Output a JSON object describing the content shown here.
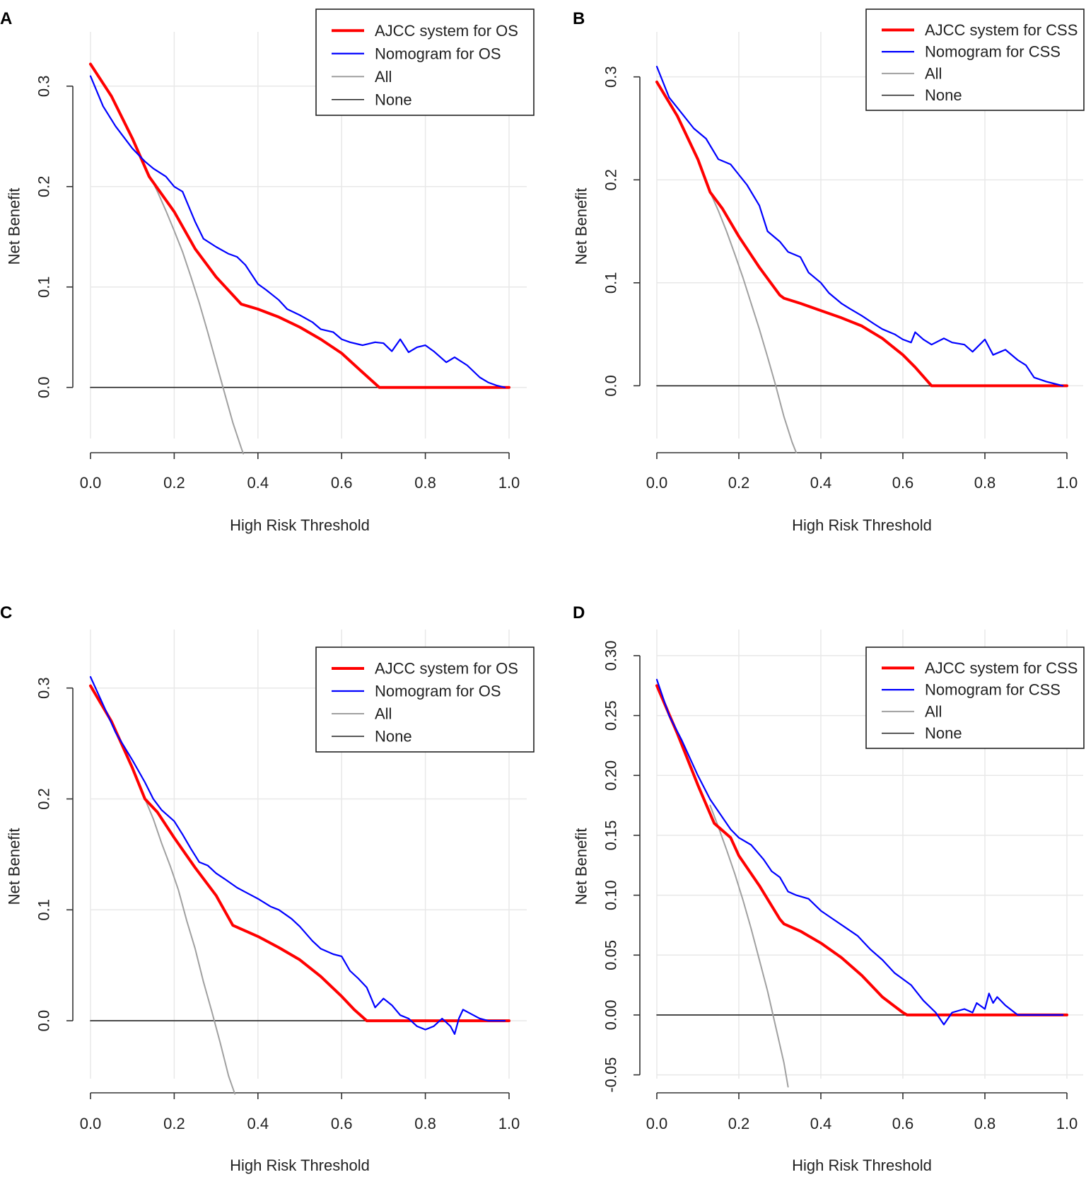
{
  "colors": {
    "ajcc": "#ff0000",
    "nomogram": "#0000ff",
    "all": "#a0a0a0",
    "none": "#222222",
    "grid": "#e8e8e8"
  },
  "chart_data": [
    {
      "panel": "A",
      "type": "line",
      "xlabel": "High Risk Threshold",
      "ylabel": "Net Benefit",
      "xlim": [
        0,
        1
      ],
      "ylim": [
        -0.065,
        0.34
      ],
      "xticks": [
        "0.0",
        "0.2",
        "0.4",
        "0.6",
        "0.8",
        "1.0"
      ],
      "yticks": [
        "0.0",
        "0.1",
        "0.2",
        "0.3"
      ],
      "ytick_values": [
        0,
        0.1,
        0.2,
        0.3
      ],
      "legend": [
        "AJCC system for OS",
        "Nomogram for OS",
        "All",
        "None"
      ],
      "series": [
        {
          "name": "AJCC system for OS",
          "x": [
            0,
            0.05,
            0.1,
            0.14,
            0.2,
            0.25,
            0.3,
            0.36,
            0.4,
            0.45,
            0.5,
            0.55,
            0.6,
            0.65,
            0.69,
            0.8,
            0.9,
            1.0
          ],
          "y": [
            0.322,
            0.29,
            0.248,
            0.21,
            0.175,
            0.138,
            0.11,
            0.083,
            0.078,
            0.07,
            0.06,
            0.048,
            0.034,
            0.015,
            0,
            0,
            0,
            0
          ]
        },
        {
          "name": "Nomogram for OS",
          "x": [
            0,
            0.03,
            0.06,
            0.1,
            0.13,
            0.15,
            0.18,
            0.2,
            0.22,
            0.25,
            0.27,
            0.3,
            0.33,
            0.35,
            0.37,
            0.4,
            0.42,
            0.45,
            0.47,
            0.5,
            0.53,
            0.55,
            0.58,
            0.6,
            0.62,
            0.65,
            0.68,
            0.7,
            0.72,
            0.74,
            0.76,
            0.78,
            0.8,
            0.82,
            0.85,
            0.87,
            0.9,
            0.93,
            0.95,
            0.97,
            0.99
          ],
          "y": [
            0.31,
            0.28,
            0.26,
            0.238,
            0.225,
            0.218,
            0.21,
            0.2,
            0.195,
            0.165,
            0.148,
            0.14,
            0.133,
            0.13,
            0.122,
            0.103,
            0.097,
            0.087,
            0.078,
            0.072,
            0.065,
            0.058,
            0.055,
            0.048,
            0.045,
            0.042,
            0.045,
            0.044,
            0.036,
            0.048,
            0.035,
            0.04,
            0.042,
            0.036,
            0.025,
            0.03,
            0.022,
            0.01,
            0.005,
            0.002,
            0
          ]
        },
        {
          "name": "All",
          "x": [
            0.14,
            0.16,
            0.18,
            0.2,
            0.22,
            0.24,
            0.26,
            0.28,
            0.3,
            0.32,
            0.34,
            0.36,
            0.365
          ],
          "y": [
            0.212,
            0.195,
            0.176,
            0.156,
            0.135,
            0.11,
            0.084,
            0.055,
            0.025,
            -0.005,
            -0.035,
            -0.06,
            -0.066
          ]
        },
        {
          "name": "None",
          "x": [
            0,
            1
          ],
          "y": [
            0,
            0
          ]
        }
      ]
    },
    {
      "panel": "B",
      "type": "line",
      "xlabel": "High Risk Threshold",
      "ylabel": "Net Benefit",
      "xlim": [
        0,
        1
      ],
      "ylim": [
        -0.065,
        0.33
      ],
      "xticks": [
        "0.0",
        "0.2",
        "0.4",
        "0.6",
        "0.8",
        "1.0"
      ],
      "yticks": [
        "0.0",
        "0.1",
        "0.2",
        "0.3"
      ],
      "ytick_values": [
        0,
        0.1,
        0.2,
        0.3
      ],
      "legend": [
        "AJCC system for CSS",
        "Nomogram for CSS",
        "All",
        "None"
      ],
      "series": [
        {
          "name": "AJCC system for CSS",
          "x": [
            0,
            0.05,
            0.1,
            0.13,
            0.16,
            0.2,
            0.25,
            0.3,
            0.31,
            0.35,
            0.4,
            0.45,
            0.5,
            0.55,
            0.6,
            0.63,
            0.67,
            0.8,
            0.9,
            1.0
          ],
          "y": [
            0.295,
            0.262,
            0.22,
            0.188,
            0.172,
            0.145,
            0.115,
            0.088,
            0.085,
            0.08,
            0.073,
            0.066,
            0.058,
            0.046,
            0.03,
            0.018,
            0,
            0,
            0,
            0
          ]
        },
        {
          "name": "Nomogram for CSS",
          "x": [
            0,
            0.03,
            0.06,
            0.09,
            0.12,
            0.15,
            0.18,
            0.2,
            0.22,
            0.25,
            0.27,
            0.3,
            0.32,
            0.35,
            0.37,
            0.4,
            0.42,
            0.45,
            0.47,
            0.5,
            0.53,
            0.55,
            0.58,
            0.6,
            0.62,
            0.63,
            0.65,
            0.67,
            0.7,
            0.72,
            0.75,
            0.77,
            0.8,
            0.82,
            0.85,
            0.88,
            0.9,
            0.92,
            0.95,
            0.97,
            0.99
          ],
          "y": [
            0.31,
            0.28,
            0.265,
            0.25,
            0.24,
            0.22,
            0.215,
            0.205,
            0.195,
            0.175,
            0.15,
            0.14,
            0.13,
            0.125,
            0.11,
            0.1,
            0.09,
            0.08,
            0.075,
            0.068,
            0.06,
            0.055,
            0.05,
            0.045,
            0.042,
            0.052,
            0.045,
            0.04,
            0.046,
            0.042,
            0.04,
            0.033,
            0.045,
            0.03,
            0.035,
            0.025,
            0.02,
            0.008,
            0.004,
            0.002,
            0
          ]
        },
        {
          "name": "All",
          "x": [
            0.13,
            0.15,
            0.17,
            0.19,
            0.21,
            0.23,
            0.25,
            0.27,
            0.29,
            0.31,
            0.33,
            0.34
          ],
          "y": [
            0.188,
            0.17,
            0.15,
            0.128,
            0.105,
            0.08,
            0.055,
            0.028,
            0,
            -0.03,
            -0.055,
            -0.065
          ]
        },
        {
          "name": "None",
          "x": [
            0,
            1
          ],
          "y": [
            0,
            0
          ]
        }
      ]
    },
    {
      "panel": "C",
      "type": "line",
      "xlabel": "High Risk Threshold",
      "ylabel": "Net Benefit",
      "xlim": [
        0,
        1
      ],
      "ylim": [
        -0.065,
        0.34
      ],
      "xticks": [
        "0.0",
        "0.2",
        "0.4",
        "0.6",
        "0.8",
        "1.0"
      ],
      "yticks": [
        "0.0",
        "0.1",
        "0.2",
        "0.3"
      ],
      "ytick_values": [
        0,
        0.1,
        0.2,
        0.3
      ],
      "legend": [
        "AJCC system for OS",
        "Nomogram for OS",
        "All",
        "None"
      ],
      "series": [
        {
          "name": "AJCC system for OS",
          "x": [
            0,
            0.05,
            0.1,
            0.13,
            0.16,
            0.2,
            0.25,
            0.3,
            0.34,
            0.4,
            0.45,
            0.5,
            0.55,
            0.6,
            0.63,
            0.66,
            0.8,
            0.9,
            1.0
          ],
          "y": [
            0.302,
            0.27,
            0.228,
            0.2,
            0.188,
            0.165,
            0.138,
            0.113,
            0.086,
            0.076,
            0.066,
            0.055,
            0.04,
            0.022,
            0.01,
            0,
            0,
            0,
            0
          ]
        },
        {
          "name": "Nomogram for OS",
          "x": [
            0,
            0.03,
            0.06,
            0.1,
            0.13,
            0.15,
            0.17,
            0.2,
            0.22,
            0.24,
            0.26,
            0.28,
            0.3,
            0.32,
            0.35,
            0.37,
            0.4,
            0.43,
            0.45,
            0.48,
            0.5,
            0.53,
            0.55,
            0.58,
            0.6,
            0.62,
            0.64,
            0.66,
            0.68,
            0.7,
            0.72,
            0.74,
            0.76,
            0.78,
            0.8,
            0.82,
            0.84,
            0.86,
            0.87,
            0.88,
            0.89,
            0.91,
            0.93,
            0.95,
            0.99
          ],
          "y": [
            0.31,
            0.285,
            0.26,
            0.235,
            0.215,
            0.2,
            0.19,
            0.18,
            0.168,
            0.155,
            0.143,
            0.14,
            0.133,
            0.128,
            0.12,
            0.116,
            0.11,
            0.103,
            0.1,
            0.092,
            0.085,
            0.072,
            0.065,
            0.06,
            0.058,
            0.045,
            0.038,
            0.03,
            0.012,
            0.02,
            0.014,
            0.005,
            0.002,
            -0.005,
            -0.008,
            -0.005,
            0.002,
            -0.005,
            -0.012,
            0.002,
            0.01,
            0.006,
            0.002,
            0,
            0
          ]
        },
        {
          "name": "All",
          "x": [
            0.13,
            0.15,
            0.17,
            0.19,
            0.21,
            0.23,
            0.25,
            0.27,
            0.29,
            0.31,
            0.33,
            0.345
          ],
          "y": [
            0.2,
            0.182,
            0.16,
            0.14,
            0.118,
            0.09,
            0.065,
            0.035,
            0.008,
            -0.02,
            -0.05,
            -0.066
          ]
        },
        {
          "name": "None",
          "x": [
            0,
            1
          ],
          "y": [
            0,
            0
          ]
        }
      ]
    },
    {
      "panel": "D",
      "type": "line",
      "xlabel": "High Risk Threshold",
      "ylabel": "Net Benefit",
      "xlim": [
        0,
        1
      ],
      "ylim": [
        -0.065,
        0.31
      ],
      "xticks": [
        "0.0",
        "0.2",
        "0.4",
        "0.6",
        "0.8",
        "1.0"
      ],
      "yticks": [
        "-0.05",
        "0.00",
        "0.05",
        "0.10",
        "0.15",
        "0.20",
        "0.25",
        "0.30"
      ],
      "ytick_values": [
        -0.05,
        0,
        0.05,
        0.1,
        0.15,
        0.2,
        0.25,
        0.3
      ],
      "legend": [
        "AJCC system for CSS",
        "Nomogram for CSS",
        "All",
        "None"
      ],
      "series": [
        {
          "name": "AJCC system for CSS",
          "x": [
            0,
            0.05,
            0.1,
            0.14,
            0.18,
            0.2,
            0.25,
            0.3,
            0.31,
            0.35,
            0.4,
            0.45,
            0.5,
            0.55,
            0.6,
            0.61,
            0.8,
            0.9,
            1.0
          ],
          "y": [
            0.275,
            0.235,
            0.192,
            0.16,
            0.148,
            0.133,
            0.108,
            0.08,
            0.076,
            0.07,
            0.06,
            0.048,
            0.033,
            0.015,
            0.002,
            0,
            0,
            0,
            0
          ]
        },
        {
          "name": "Nomogram for CSS",
          "x": [
            0,
            0.03,
            0.06,
            0.1,
            0.13,
            0.15,
            0.18,
            0.2,
            0.23,
            0.26,
            0.28,
            0.3,
            0.32,
            0.34,
            0.37,
            0.4,
            0.43,
            0.46,
            0.49,
            0.52,
            0.55,
            0.58,
            0.6,
            0.62,
            0.65,
            0.68,
            0.7,
            0.72,
            0.75,
            0.77,
            0.78,
            0.8,
            0.81,
            0.82,
            0.83,
            0.85,
            0.88,
            0.95,
            0.99
          ],
          "y": [
            0.28,
            0.25,
            0.23,
            0.2,
            0.18,
            0.17,
            0.155,
            0.148,
            0.142,
            0.13,
            0.12,
            0.115,
            0.103,
            0.1,
            0.097,
            0.087,
            0.08,
            0.073,
            0.066,
            0.055,
            0.046,
            0.035,
            0.03,
            0.025,
            0.012,
            0.002,
            -0.008,
            0.002,
            0.005,
            0.002,
            0.01,
            0.005,
            0.018,
            0.01,
            0.015,
            0.008,
            0,
            0,
            0
          ]
        },
        {
          "name": "All",
          "x": [
            0.13,
            0.15,
            0.17,
            0.19,
            0.21,
            0.23,
            0.25,
            0.27,
            0.29,
            0.31,
            0.32
          ],
          "y": [
            0.175,
            0.157,
            0.138,
            0.118,
            0.096,
            0.072,
            0.046,
            0.02,
            -0.01,
            -0.04,
            -0.06
          ]
        },
        {
          "name": "None",
          "x": [
            0,
            1
          ],
          "y": [
            0,
            0
          ]
        }
      ]
    }
  ]
}
